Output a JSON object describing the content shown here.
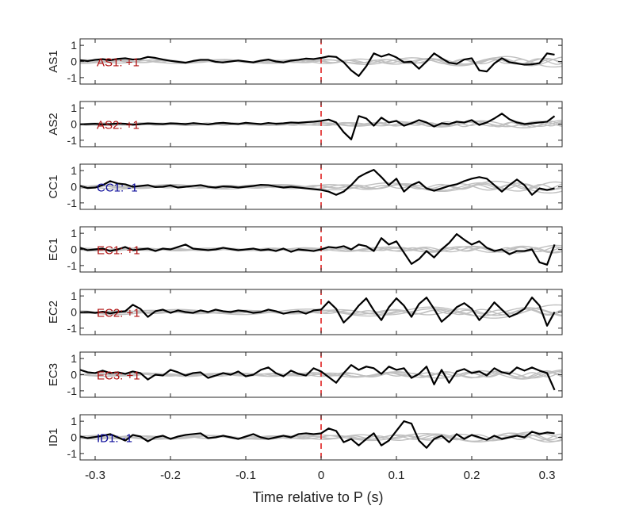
{
  "figure": {
    "xlabel": "Time relative to P (s)",
    "x_ticks": [
      -0.3,
      -0.2,
      -0.1,
      0,
      0.1,
      0.2,
      0.3
    ],
    "x_tick_labels": [
      "-0.3",
      "-0.2",
      "-0.1",
      "0",
      "0.1",
      "0.2",
      "0.3"
    ],
    "y_ticks": [
      1,
      0,
      -1
    ],
    "y_tick_labels": [
      "1",
      "0",
      "-1"
    ],
    "colors": {
      "trace": "#000000",
      "background_traces": "#c0c0c0",
      "onset_marker": "#e02020",
      "label_positive": "#b01010",
      "label_negative": "#0a0a9a"
    }
  },
  "chart_data": [
    {
      "type": "line",
      "ylabel": "AS1",
      "annotation": "AS1: +1",
      "polarity": "positive",
      "xlim": [
        -0.32,
        0.32
      ],
      "ylim": [
        -1.4,
        1.4
      ],
      "x": [
        -0.32,
        -0.31,
        -0.3,
        -0.29,
        -0.28,
        -0.27,
        -0.26,
        -0.25,
        -0.24,
        -0.23,
        -0.22,
        -0.21,
        -0.2,
        -0.19,
        -0.18,
        -0.17,
        -0.16,
        -0.15,
        -0.14,
        -0.13,
        -0.12,
        -0.11,
        -0.1,
        -0.09,
        -0.08,
        -0.07,
        -0.06,
        -0.05,
        -0.04,
        -0.03,
        -0.02,
        -0.01,
        0,
        0.01,
        0.02,
        0.03,
        0.04,
        0.05,
        0.06,
        0.07,
        0.08,
        0.09,
        0.1,
        0.11,
        0.12,
        0.13,
        0.14,
        0.15,
        0.16,
        0.17,
        0.18,
        0.19,
        0.2,
        0.21,
        0.22,
        0.23,
        0.24,
        0.25,
        0.26,
        0.27,
        0.28,
        0.29,
        0.3,
        0.31
      ],
      "y": [
        0.08,
        0.02,
        0.1,
        0.14,
        0.08,
        0.16,
        0.2,
        0.12,
        0.15,
        0.28,
        0.22,
        0.12,
        0.04,
        -0.02,
        -0.08,
        0.03,
        0.1,
        0.1,
        -0.02,
        -0.06,
        0.0,
        0.06,
        0.0,
        -0.06,
        0.05,
        0.12,
        0.0,
        -0.06,
        0.05,
        0.1,
        0.18,
        0.15,
        0.22,
        0.32,
        0.28,
        -0.05,
        -0.55,
        -0.9,
        -0.3,
        0.5,
        0.3,
        0.45,
        0.25,
        -0.05,
        -0.02,
        -0.45,
        0.0,
        0.5,
        0.2,
        -0.08,
        -0.15,
        0.12,
        0.2,
        -0.55,
        -0.62,
        -0.12,
        0.2,
        -0.05,
        -0.12,
        -0.2,
        -0.18,
        -0.1,
        0.5,
        0.42
      ],
      "background_series": [
        {
          "amp": 0.2,
          "freq": 14,
          "phase": 0.5
        },
        {
          "amp": 0.35,
          "freq": 8,
          "phase": 1.8
        },
        {
          "amp": 0.18,
          "freq": 20,
          "phase": 3.0
        },
        {
          "amp": 0.28,
          "freq": 11,
          "phase": 4.3
        },
        {
          "amp": 0.15,
          "freq": 26,
          "phase": 2.2
        }
      ]
    },
    {
      "type": "line",
      "ylabel": "AS2",
      "annotation": "AS2: +1",
      "polarity": "positive",
      "xlim": [
        -0.32,
        0.32
      ],
      "ylim": [
        -1.4,
        1.4
      ],
      "x": [
        -0.32,
        -0.31,
        -0.3,
        -0.29,
        -0.28,
        -0.27,
        -0.26,
        -0.25,
        -0.24,
        -0.23,
        -0.22,
        -0.21,
        -0.2,
        -0.19,
        -0.18,
        -0.17,
        -0.16,
        -0.15,
        -0.14,
        -0.13,
        -0.12,
        -0.11,
        -0.1,
        -0.09,
        -0.08,
        -0.07,
        -0.06,
        -0.05,
        -0.04,
        -0.03,
        -0.02,
        -0.01,
        0,
        0.01,
        0.02,
        0.03,
        0.04,
        0.05,
        0.06,
        0.07,
        0.08,
        0.09,
        0.1,
        0.11,
        0.12,
        0.13,
        0.14,
        0.15,
        0.16,
        0.17,
        0.18,
        0.19,
        0.2,
        0.21,
        0.22,
        0.23,
        0.24,
        0.25,
        0.26,
        0.27,
        0.28,
        0.29,
        0.3,
        0.31
      ],
      "y": [
        -0.02,
        0.0,
        0.02,
        -0.02,
        0.0,
        0.04,
        0.02,
        -0.04,
        0.0,
        0.04,
        0.02,
        0.0,
        0.05,
        0.03,
        0.0,
        0.06,
        0.02,
        -0.02,
        0.05,
        0.08,
        0.03,
        0.0,
        0.08,
        0.04,
        0.0,
        0.07,
        0.02,
        0.05,
        0.1,
        0.08,
        0.12,
        0.15,
        0.2,
        0.28,
        0.1,
        -0.5,
        -0.95,
        0.5,
        0.35,
        -0.1,
        0.4,
        0.1,
        0.2,
        -0.1,
        0.05,
        0.25,
        0.1,
        -0.15,
        0.05,
        0.0,
        0.15,
        0.1,
        0.25,
        -0.05,
        0.1,
        0.35,
        0.65,
        0.3,
        0.1,
        0.0,
        0.05,
        0.1,
        0.15,
        0.5
      ],
      "background_series": [
        {
          "amp": 0.15,
          "freq": 16,
          "phase": 0.7
        },
        {
          "amp": 0.25,
          "freq": 9,
          "phase": 2.1
        },
        {
          "amp": 0.2,
          "freq": 22,
          "phase": 3.6
        },
        {
          "amp": 0.18,
          "freq": 12,
          "phase": 5.0
        },
        {
          "amp": 0.12,
          "freq": 28,
          "phase": 1.3
        }
      ]
    },
    {
      "type": "line",
      "ylabel": "CC1",
      "annotation": "CC1: -1",
      "polarity": "negative",
      "xlim": [
        -0.32,
        0.32
      ],
      "ylim": [
        -1.4,
        1.4
      ],
      "x": [
        -0.32,
        -0.31,
        -0.3,
        -0.29,
        -0.28,
        -0.27,
        -0.26,
        -0.25,
        -0.24,
        -0.23,
        -0.22,
        -0.21,
        -0.2,
        -0.19,
        -0.18,
        -0.17,
        -0.16,
        -0.15,
        -0.14,
        -0.13,
        -0.12,
        -0.11,
        -0.1,
        -0.09,
        -0.08,
        -0.07,
        -0.06,
        -0.05,
        -0.04,
        -0.03,
        -0.02,
        -0.01,
        0,
        0.01,
        0.02,
        0.03,
        0.04,
        0.05,
        0.06,
        0.07,
        0.08,
        0.09,
        0.1,
        0.11,
        0.12,
        0.13,
        0.14,
        0.15,
        0.16,
        0.17,
        0.18,
        0.19,
        0.2,
        0.21,
        0.22,
        0.23,
        0.24,
        0.25,
        0.26,
        0.27,
        0.28,
        0.29,
        0.3,
        0.31
      ],
      "y": [
        0.05,
        -0.08,
        -0.05,
        0.1,
        0.35,
        0.2,
        0.15,
        0.0,
        0.05,
        0.1,
        -0.02,
        0.0,
        0.08,
        -0.05,
        0.0,
        0.05,
        0.1,
        0.0,
        -0.05,
        0.02,
        0.0,
        -0.05,
        0.0,
        0.05,
        0.12,
        0.1,
        0.02,
        -0.05,
        0.0,
        -0.05,
        -0.1,
        -0.15,
        -0.2,
        -0.3,
        -0.5,
        -0.3,
        0.1,
        0.6,
        0.85,
        1.05,
        0.6,
        0.1,
        0.5,
        -0.3,
        0.1,
        0.3,
        -0.1,
        -0.25,
        -0.1,
        0.05,
        0.15,
        0.35,
        0.5,
        0.6,
        0.5,
        0.1,
        -0.3,
        0.1,
        0.45,
        0.1,
        -0.5,
        -0.1,
        -0.2,
        -0.1
      ],
      "background_series": [
        {
          "amp": 0.3,
          "freq": 10,
          "phase": 0.9
        },
        {
          "amp": 0.2,
          "freq": 18,
          "phase": 2.5
        },
        {
          "amp": 0.4,
          "freq": 7,
          "phase": 4.0
        },
        {
          "amp": 0.15,
          "freq": 24,
          "phase": 1.6
        },
        {
          "amp": 0.25,
          "freq": 13,
          "phase": 5.4
        }
      ]
    },
    {
      "type": "line",
      "ylabel": "EC1",
      "annotation": "EC1: +1",
      "polarity": "positive",
      "xlim": [
        -0.32,
        0.32
      ],
      "ylim": [
        -1.4,
        1.4
      ],
      "x": [
        -0.32,
        -0.31,
        -0.3,
        -0.29,
        -0.28,
        -0.27,
        -0.26,
        -0.25,
        -0.24,
        -0.23,
        -0.22,
        -0.21,
        -0.2,
        -0.19,
        -0.18,
        -0.17,
        -0.16,
        -0.15,
        -0.14,
        -0.13,
        -0.12,
        -0.11,
        -0.1,
        -0.09,
        -0.08,
        -0.07,
        -0.06,
        -0.05,
        -0.04,
        -0.03,
        -0.02,
        -0.01,
        0,
        0.01,
        0.02,
        0.03,
        0.04,
        0.05,
        0.06,
        0.07,
        0.08,
        0.09,
        0.1,
        0.11,
        0.12,
        0.13,
        0.14,
        0.15,
        0.16,
        0.17,
        0.18,
        0.19,
        0.2,
        0.21,
        0.22,
        0.23,
        0.24,
        0.25,
        0.26,
        0.27,
        0.28,
        0.29,
        0.3,
        0.31
      ],
      "y": [
        0.1,
        -0.05,
        0.0,
        0.05,
        -0.1,
        0.0,
        0.15,
        -0.05,
        0.0,
        0.05,
        -0.1,
        0.05,
        0.0,
        0.15,
        0.3,
        0.05,
        0.0,
        -0.05,
        0.0,
        0.1,
        0.02,
        -0.05,
        0.0,
        0.05,
        -0.05,
        0.0,
        -0.1,
        0.05,
        -0.15,
        0.0,
        -0.05,
        -0.1,
        0.0,
        0.15,
        0.1,
        0.2,
        0.0,
        0.3,
        0.2,
        -0.1,
        0.7,
        0.3,
        0.5,
        -0.2,
        -0.9,
        -0.6,
        -0.1,
        -0.5,
        0.0,
        0.4,
        0.95,
        0.6,
        0.3,
        0.5,
        0.1,
        -0.1,
        0.0,
        -0.3,
        -0.1,
        -0.1,
        0.0,
        -0.8,
        -0.95,
        0.3
      ],
      "background_series": [
        {
          "amp": 0.2,
          "freq": 15,
          "phase": 1.1
        },
        {
          "amp": 0.25,
          "freq": 9,
          "phase": 2.8
        },
        {
          "amp": 0.15,
          "freq": 21,
          "phase": 4.4
        },
        {
          "amp": 0.22,
          "freq": 12,
          "phase": 0.3
        },
        {
          "amp": 0.12,
          "freq": 27,
          "phase": 3.7
        }
      ]
    },
    {
      "type": "line",
      "ylabel": "EC2",
      "annotation": "EC2: +1",
      "polarity": "positive",
      "xlim": [
        -0.32,
        0.32
      ],
      "ylim": [
        -1.4,
        1.4
      ],
      "x": [
        -0.32,
        -0.31,
        -0.3,
        -0.29,
        -0.28,
        -0.27,
        -0.26,
        -0.25,
        -0.24,
        -0.23,
        -0.22,
        -0.21,
        -0.2,
        -0.19,
        -0.18,
        -0.17,
        -0.16,
        -0.15,
        -0.14,
        -0.13,
        -0.12,
        -0.11,
        -0.1,
        -0.09,
        -0.08,
        -0.07,
        -0.06,
        -0.05,
        -0.04,
        -0.03,
        -0.02,
        -0.01,
        0,
        0.01,
        0.02,
        0.03,
        0.04,
        0.05,
        0.06,
        0.07,
        0.08,
        0.09,
        0.1,
        0.11,
        0.12,
        0.13,
        0.14,
        0.15,
        0.16,
        0.17,
        0.18,
        0.19,
        0.2,
        0.21,
        0.22,
        0.23,
        0.24,
        0.25,
        0.26,
        0.27,
        0.28,
        0.29,
        0.3,
        0.31
      ],
      "y": [
        -0.02,
        0.0,
        -0.05,
        0.02,
        -0.08,
        0.0,
        0.05,
        0.45,
        0.2,
        -0.3,
        0.05,
        0.15,
        -0.05,
        0.1,
        0.0,
        -0.05,
        0.1,
        0.0,
        0.15,
        0.05,
        0.0,
        0.1,
        0.05,
        -0.05,
        0.0,
        0.15,
        0.05,
        -0.1,
        0.0,
        0.05,
        -0.1,
        0.1,
        0.15,
        0.65,
        0.2,
        -0.65,
        -0.2,
        0.4,
        0.85,
        0.1,
        -0.5,
        0.3,
        0.85,
        0.4,
        -0.3,
        0.5,
        0.9,
        0.2,
        -0.6,
        -0.2,
        0.3,
        0.55,
        0.2,
        -0.5,
        0.0,
        0.6,
        0.15,
        -0.3,
        -0.1,
        0.2,
        0.9,
        0.4,
        -0.85,
        0.0
      ],
      "background_series": [
        {
          "amp": 0.3,
          "freq": 8,
          "phase": 0.4
        },
        {
          "amp": 0.45,
          "freq": 6,
          "phase": 2.4
        },
        {
          "amp": 0.2,
          "freq": 17,
          "phase": 3.9
        },
        {
          "amp": 0.25,
          "freq": 11,
          "phase": 1.2
        },
        {
          "amp": 0.15,
          "freq": 23,
          "phase": 5.1
        }
      ]
    },
    {
      "type": "line",
      "ylabel": "EC3",
      "annotation": "EC3: +1",
      "polarity": "positive",
      "xlim": [
        -0.32,
        0.32
      ],
      "ylim": [
        -1.4,
        1.4
      ],
      "x": [
        -0.32,
        -0.31,
        -0.3,
        -0.29,
        -0.28,
        -0.27,
        -0.26,
        -0.25,
        -0.24,
        -0.23,
        -0.22,
        -0.21,
        -0.2,
        -0.19,
        -0.18,
        -0.17,
        -0.16,
        -0.15,
        -0.14,
        -0.13,
        -0.12,
        -0.11,
        -0.1,
        -0.09,
        -0.08,
        -0.07,
        -0.06,
        -0.05,
        -0.04,
        -0.03,
        -0.02,
        -0.01,
        0,
        0.01,
        0.02,
        0.03,
        0.04,
        0.05,
        0.06,
        0.07,
        0.08,
        0.09,
        0.1,
        0.11,
        0.12,
        0.13,
        0.14,
        0.15,
        0.16,
        0.17,
        0.18,
        0.19,
        0.2,
        0.21,
        0.22,
        0.23,
        0.24,
        0.25,
        0.26,
        0.27,
        0.28,
        0.29,
        0.3,
        0.31
      ],
      "y": [
        0.3,
        0.15,
        0.1,
        0.25,
        0.1,
        0.15,
        0.05,
        0.2,
        0.1,
        -0.3,
        0.0,
        -0.05,
        0.3,
        0.15,
        -0.05,
        0.1,
        0.15,
        -0.2,
        -0.05,
        0.1,
        0.0,
        0.2,
        -0.1,
        0.0,
        0.3,
        0.45,
        0.1,
        -0.1,
        0.25,
        0.05,
        -0.05,
        0.4,
        0.2,
        -0.15,
        -0.5,
        0.1,
        0.6,
        0.3,
        0.5,
        0.4,
        0.05,
        0.5,
        0.3,
        0.4,
        -0.2,
        0.05,
        0.5,
        -0.6,
        0.3,
        -0.5,
        0.2,
        0.35,
        0.1,
        0.2,
        -0.05,
        0.4,
        0.15,
        0.05,
        0.45,
        0.25,
        0.45,
        0.25,
        0.1,
        -0.95
      ],
      "background_series": [
        {
          "amp": 0.22,
          "freq": 13,
          "phase": 0.6
        },
        {
          "amp": 0.3,
          "freq": 9,
          "phase": 2.2
        },
        {
          "amp": 0.18,
          "freq": 19,
          "phase": 3.4
        },
        {
          "amp": 0.25,
          "freq": 15,
          "phase": 4.8
        },
        {
          "amp": 0.14,
          "freq": 25,
          "phase": 1.5
        }
      ]
    },
    {
      "type": "line",
      "ylabel": "ID1",
      "annotation": "ID1: -1",
      "polarity": "negative",
      "xlim": [
        -0.32,
        0.32
      ],
      "ylim": [
        -1.4,
        1.4
      ],
      "x": [
        -0.32,
        -0.31,
        -0.3,
        -0.29,
        -0.28,
        -0.27,
        -0.26,
        -0.25,
        -0.24,
        -0.23,
        -0.22,
        -0.21,
        -0.2,
        -0.19,
        -0.18,
        -0.17,
        -0.16,
        -0.15,
        -0.14,
        -0.13,
        -0.12,
        -0.11,
        -0.1,
        -0.09,
        -0.08,
        -0.07,
        -0.06,
        -0.05,
        -0.04,
        -0.03,
        -0.02,
        -0.01,
        0,
        0.01,
        0.02,
        0.03,
        0.04,
        0.05,
        0.06,
        0.07,
        0.08,
        0.09,
        0.1,
        0.11,
        0.12,
        0.13,
        0.14,
        0.15,
        0.16,
        0.17,
        0.18,
        0.19,
        0.2,
        0.21,
        0.22,
        0.23,
        0.24,
        0.25,
        0.26,
        0.27,
        0.28,
        0.29,
        0.3,
        0.31
      ],
      "y": [
        0.05,
        -0.05,
        0.02,
        0.1,
        0.2,
        0.0,
        -0.2,
        0.15,
        0.05,
        -0.25,
        0.0,
        0.1,
        -0.1,
        0.05,
        0.15,
        0.2,
        0.25,
        -0.05,
        0.0,
        0.1,
        0.0,
        -0.1,
        0.05,
        0.2,
        0.0,
        -0.1,
        0.0,
        0.1,
        0.0,
        0.2,
        0.25,
        0.2,
        0.25,
        0.55,
        0.4,
        -0.3,
        -0.1,
        -0.5,
        -0.1,
        0.25,
        -0.5,
        -0.2,
        0.4,
        1.0,
        0.85,
        -0.2,
        -0.65,
        -0.1,
        0.1,
        -0.3,
        0.2,
        -0.1,
        0.15,
        0.0,
        -0.15,
        0.1,
        -0.1,
        0.0,
        0.1,
        0.0,
        0.35,
        0.2,
        0.3,
        0.25
      ],
      "background_series": [
        {
          "amp": 0.25,
          "freq": 12,
          "phase": 0.2
        },
        {
          "amp": 0.35,
          "freq": 7,
          "phase": 1.9
        },
        {
          "amp": 0.2,
          "freq": 18,
          "phase": 3.2
        },
        {
          "amp": 0.3,
          "freq": 10,
          "phase": 4.6
        },
        {
          "amp": 0.15,
          "freq": 24,
          "phase": 2.7
        }
      ]
    }
  ]
}
